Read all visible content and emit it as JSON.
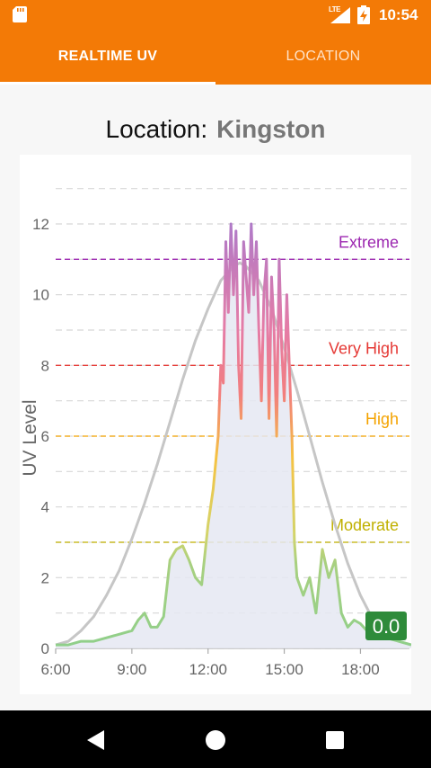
{
  "status_bar": {
    "network": "LTE",
    "time": "10:54",
    "icons": [
      "sd-card-icon",
      "signal-icon",
      "battery-charging-icon"
    ]
  },
  "tabs": [
    {
      "label": "REALTIME UV",
      "active": true
    },
    {
      "label": "LOCATION",
      "active": false
    }
  ],
  "location": {
    "label": "Location:",
    "value": "Kingston"
  },
  "chart_data": {
    "type": "line",
    "title": "",
    "xlabel": "",
    "ylabel": "UV Level",
    "x_ticks": [
      "6:00",
      "9:00",
      "12:00",
      "15:00",
      "18:00"
    ],
    "y_ticks": [
      0,
      2,
      4,
      6,
      8,
      10,
      12
    ],
    "xlim_hours": [
      6,
      20
    ],
    "ylim": [
      0,
      13.5
    ],
    "grid": true,
    "current_value": "0.0",
    "thresholds": [
      {
        "name": "Extreme",
        "value": 11,
        "color": "#9c27b0"
      },
      {
        "name": "Very High",
        "value": 8,
        "color": "#e53935"
      },
      {
        "name": "High",
        "value": 6,
        "color": "#f4a300"
      },
      {
        "name": "Moderate",
        "value": 3,
        "color": "#c0b000"
      }
    ],
    "series": [
      {
        "name": "",
        "kind": "forecast",
        "color": "#c4c4c4",
        "peak": 10.9,
        "x": [
          6.0,
          6.5,
          7.0,
          7.5,
          8.0,
          8.5,
          9.0,
          9.5,
          10.0,
          10.5,
          11.0,
          11.5,
          12.0,
          12.5,
          13.0,
          13.25,
          13.5,
          14.0,
          14.5,
          15.0,
          15.5,
          16.0,
          16.5,
          17.0,
          17.5,
          18.0,
          18.5,
          19.0,
          19.5,
          20.0
        ],
        "y": [
          0.1,
          0.2,
          0.5,
          0.9,
          1.5,
          2.2,
          3.1,
          4.1,
          5.2,
          6.4,
          7.6,
          8.7,
          9.6,
          10.4,
          10.8,
          10.9,
          10.8,
          10.4,
          9.6,
          8.5,
          7.3,
          6.0,
          4.7,
          3.5,
          2.4,
          1.5,
          0.8,
          0.4,
          0.2,
          0.1
        ]
      },
      {
        "name": "",
        "kind": "measured",
        "x": [
          6.0,
          6.5,
          7.0,
          7.5,
          8.0,
          8.5,
          9.0,
          9.25,
          9.5,
          9.75,
          10.0,
          10.25,
          10.5,
          10.75,
          11.0,
          11.25,
          11.5,
          11.75,
          12.0,
          12.2,
          12.4,
          12.5,
          12.6,
          12.7,
          12.8,
          12.9,
          13.0,
          13.1,
          13.2,
          13.3,
          13.4,
          13.5,
          13.6,
          13.7,
          13.8,
          13.9,
          14.0,
          14.1,
          14.2,
          14.3,
          14.4,
          14.5,
          14.6,
          14.7,
          14.8,
          14.9,
          15.0,
          15.1,
          15.2,
          15.3,
          15.4,
          15.5,
          15.75,
          16.0,
          16.25,
          16.5,
          16.75,
          17.0,
          17.25,
          17.5,
          17.75,
          18.0,
          18.25,
          18.5,
          18.75,
          19.0,
          19.5,
          20.0
        ],
        "y": [
          0.1,
          0.1,
          0.2,
          0.2,
          0.3,
          0.4,
          0.5,
          0.8,
          1.0,
          0.6,
          0.6,
          0.9,
          2.5,
          2.8,
          2.9,
          2.5,
          2.0,
          1.8,
          3.5,
          4.5,
          6.0,
          8.0,
          7.5,
          11.5,
          9.5,
          12.0,
          10.0,
          11.8,
          8.0,
          6.5,
          11.5,
          10.5,
          9.5,
          12.0,
          10.0,
          11.5,
          9.0,
          7.0,
          10.0,
          11.0,
          6.5,
          10.5,
          9.0,
          6.0,
          11.0,
          8.5,
          7.0,
          10.0,
          8.0,
          6.0,
          3.0,
          2.0,
          1.5,
          2.0,
          1.0,
          2.8,
          2.0,
          2.5,
          1.0,
          0.6,
          0.8,
          0.7,
          0.5,
          0.3,
          0.5,
          0.3,
          0.2,
          0.1
        ]
      }
    ]
  }
}
